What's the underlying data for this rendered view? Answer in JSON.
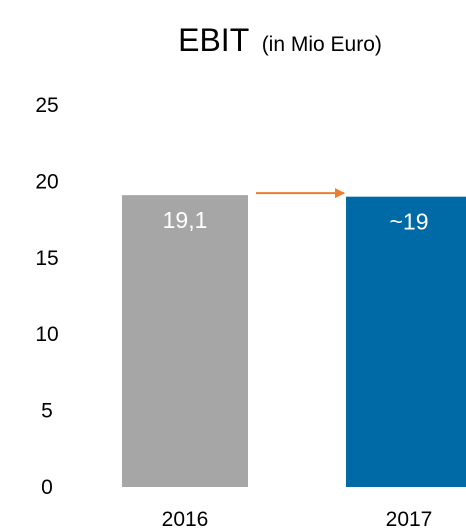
{
  "chart_data": {
    "type": "bar",
    "title": "EBIT",
    "subtitle": "(in Mio Euro)",
    "xlabel": "",
    "ylabel": "",
    "categories": [
      "2016",
      "2017"
    ],
    "values": [
      19.1,
      19
    ],
    "data_labels": [
      "19,1",
      "~19"
    ],
    "ylim": [
      0,
      25
    ],
    "yticks": [
      0,
      5,
      10,
      15,
      20,
      25
    ],
    "ytick_labels": [
      "0",
      "5",
      "10",
      "15",
      "20",
      "25"
    ],
    "grid": false,
    "legend": "none",
    "bar_colors": [
      "#a6a6a6",
      "#006aa7"
    ],
    "annotations": [
      {
        "type": "arrow",
        "from": "2016",
        "to": "2017",
        "color": "#ed7d31"
      }
    ]
  }
}
